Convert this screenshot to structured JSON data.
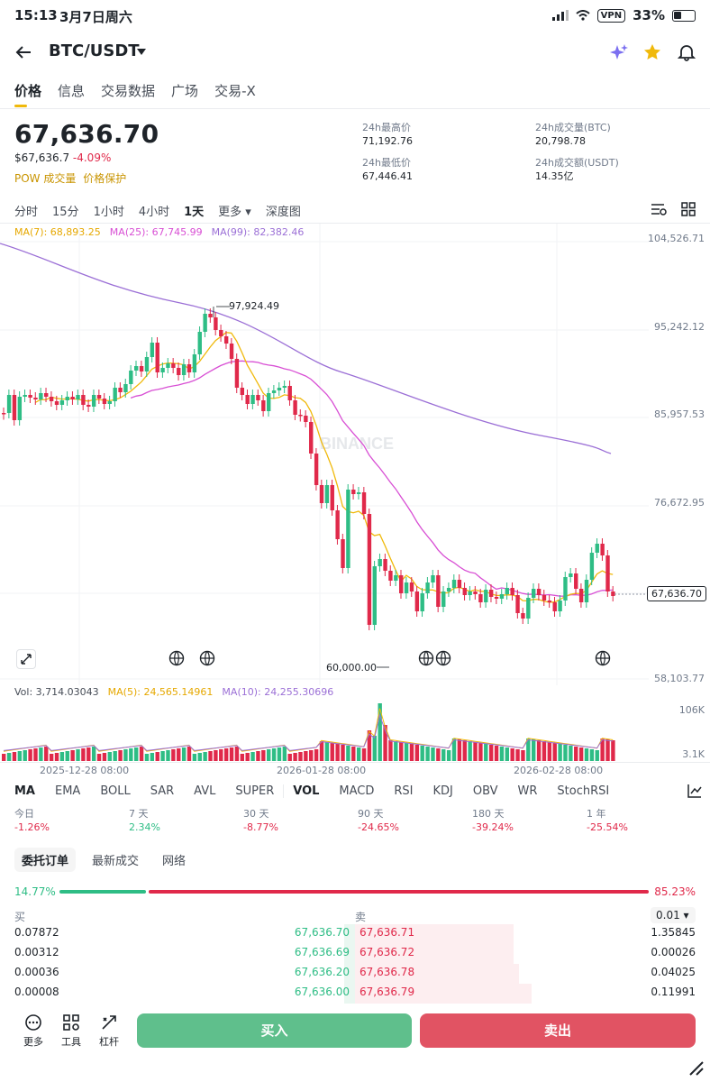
{
  "status_bar": {
    "time": "15:13",
    "date": "3月7日周六",
    "vpn": "VPN",
    "battery": "33%"
  },
  "header": {
    "pair": "BTC/USDT"
  },
  "tabs": [
    "价格",
    "信息",
    "交易数据",
    "广场",
    "交易-X"
  ],
  "ticker": {
    "last_price": "67,636.70",
    "usd_price": "$67,636.7",
    "change_pct": "-4.09%",
    "tag_pow": "POW",
    "tag_volume": "成交量",
    "tag_protect": "价格保护",
    "high_label": "24h最高价",
    "high": "71,192.76",
    "low_label": "24h最低价",
    "low": "67,446.41",
    "vol_btc_label": "24h成交量(BTC)",
    "vol_btc": "20,798.78",
    "vol_usdt_label": "24h成交额(USDT)",
    "vol_usdt": "14.35亿"
  },
  "intervals": [
    "分时",
    "15分",
    "1小时",
    "4小时",
    "1天",
    "更多 ▾",
    "深度图"
  ],
  "ma": {
    "ma7": "MA(7): 68,893.25",
    "ma25": "MA(25): 67,745.99",
    "ma99": "MA(99): 82,382.46"
  },
  "price_axis": [
    "104,526.71",
    "95,242.12",
    "85,957.53",
    "76,672.95",
    "67,636.70",
    "58,103.77"
  ],
  "chart_labels": {
    "high_marker": "97,924.49",
    "low_marker": "60,000.00",
    "watermark": "BINANCE"
  },
  "volume": {
    "vol": "Vol: 3,714.03043",
    "ma5": "MA(5): 24,565.14961",
    "ma10": "MA(10): 24,255.30696",
    "axis_top": "106K",
    "axis_bottom": "3.1K"
  },
  "date_axis": [
    "2025-12-28 08:00",
    "2026-01-28 08:00",
    "2026-02-28 08:00"
  ],
  "indicators": [
    "MA",
    "EMA",
    "BOLL",
    "SAR",
    "AVL",
    "SUPER",
    "VOL",
    "MACD",
    "RSI",
    "KDJ",
    "OBV",
    "WR",
    "StochRSI"
  ],
  "performance": [
    {
      "label": "今日",
      "value": "-1.26%"
    },
    {
      "label": "7 天",
      "value": "2.34%"
    },
    {
      "label": "30 天",
      "value": "-8.77%"
    },
    {
      "label": "90 天",
      "value": "-24.65%"
    },
    {
      "label": "180 天",
      "value": "-39.24%"
    },
    {
      "label": "1 年",
      "value": "-25.54%"
    }
  ],
  "orderbook": {
    "tabs": [
      "委托订单",
      "最新成交",
      "网络"
    ],
    "buy_pct": "14.77%",
    "sell_pct": "85.23%",
    "buy_label": "买",
    "sell_label": "卖",
    "precision": "0.01 ▾",
    "rows": [
      {
        "bid_qty": "0.07872",
        "bid": "67,636.70",
        "ask": "67,636.71",
        "ask_qty": "1.35845"
      },
      {
        "bid_qty": "0.00312",
        "bid": "67,636.69",
        "ask": "67,636.72",
        "ask_qty": "0.00026"
      },
      {
        "bid_qty": "0.00036",
        "bid": "67,636.20",
        "ask": "67,636.78",
        "ask_qty": "0.04025"
      },
      {
        "bid_qty": "0.00008",
        "bid": "67,636.00",
        "ask": "67,636.79",
        "ask_qty": "0.11991"
      }
    ]
  },
  "bottom": {
    "more": "更多",
    "tools": "工具",
    "leverage": "杠杆",
    "buy": "买入",
    "sell": "卖出"
  },
  "colors": {
    "up": "#2ebd85",
    "down": "#e0294a",
    "ma7": "#f0b90b",
    "ma25": "#d84fd4",
    "ma99": "#9b6fd6",
    "accent": "#f0b90b"
  }
}
